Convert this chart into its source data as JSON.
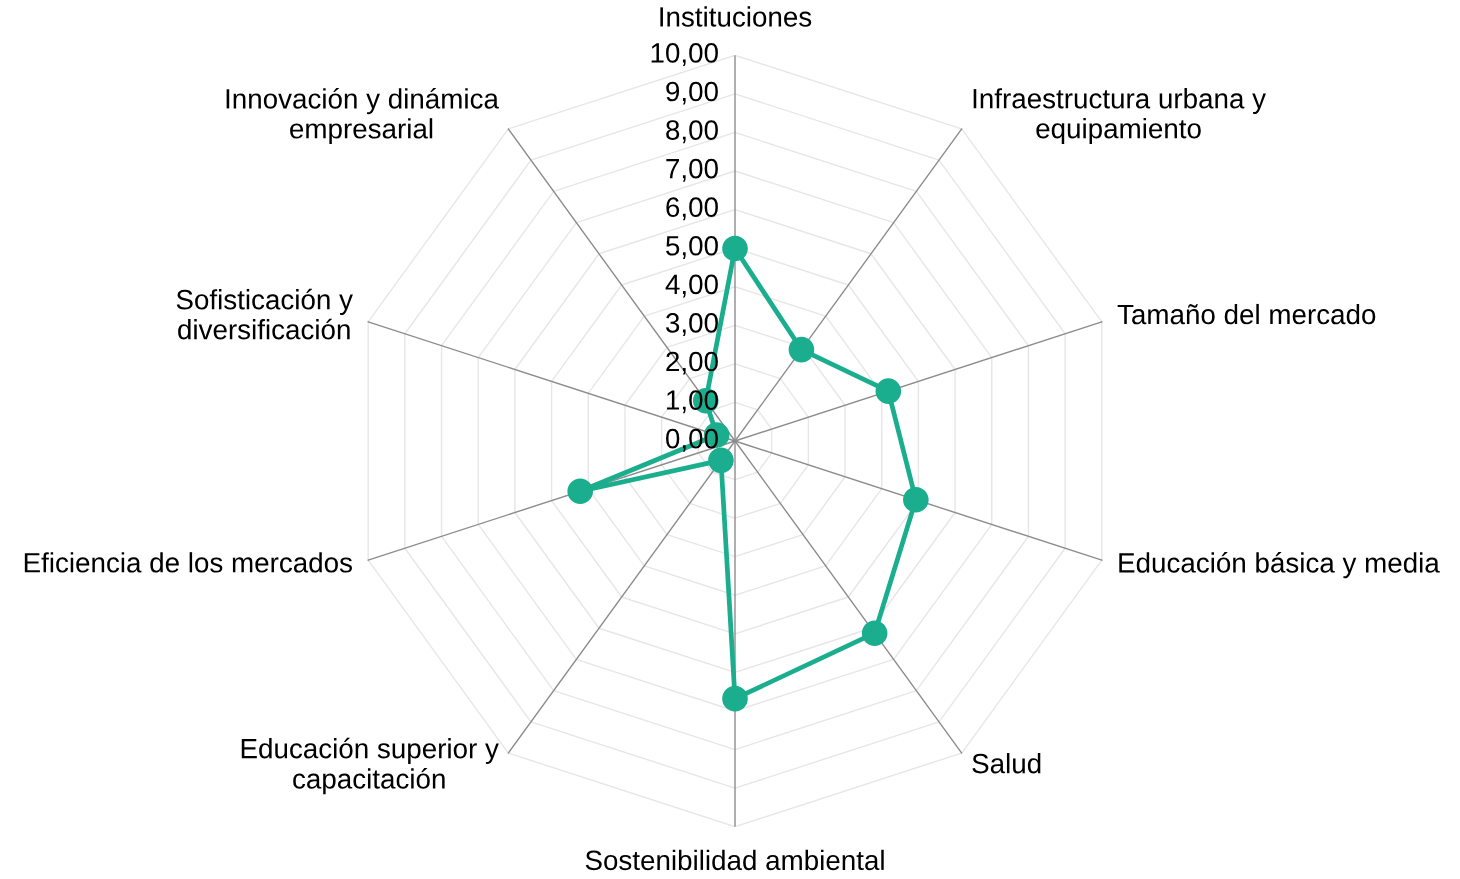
{
  "chart_data": {
    "type": "radar",
    "categories": [
      "Instituciones",
      "Infraestructura urbana y\nequipamiento",
      "Tamaño del mercado",
      "Educación básica y media",
      "Salud",
      "Sostenibilidad ambiental",
      "Educación superior y\ncapacitación",
      "Eficiencia de los mercados",
      "Sofisticación y\ndiversificación",
      "Innovación y dinámica\nempresarial"
    ],
    "series": [
      {
        "color": "#1aae8f",
        "values": [
          4.99,
          2.93,
          4.18,
          4.93,
          6.16,
          6.68,
          0.62,
          4.22,
          0.5,
          1.29
        ]
      }
    ],
    "ylim": [
      0,
      10
    ],
    "yticks": [
      {
        "value": 0,
        "label": "0,00"
      },
      {
        "value": 1,
        "label": "1,00"
      },
      {
        "value": 2,
        "label": "2,00"
      },
      {
        "value": 3,
        "label": "3,00"
      },
      {
        "value": 4,
        "label": "4,00"
      },
      {
        "value": 5,
        "label": "5,00"
      },
      {
        "value": 6,
        "label": "6,00"
      },
      {
        "value": 7,
        "label": "7,00"
      },
      {
        "value": 8,
        "label": "8,00"
      },
      {
        "value": 9,
        "label": "9,00"
      },
      {
        "value": 10,
        "label": "10,00"
      }
    ],
    "grid": true,
    "marker": "circle",
    "line_style": "solid"
  }
}
